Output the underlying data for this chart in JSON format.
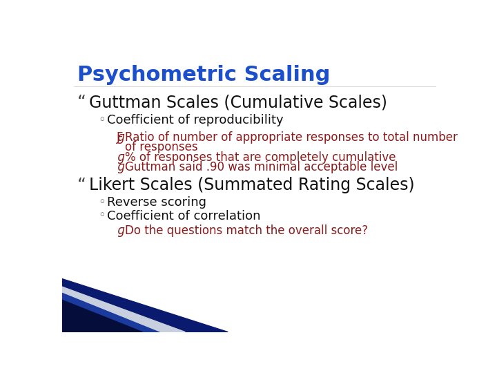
{
  "title": "Psychometric Scaling",
  "title_color": "#1B4FCC",
  "title_fontsize": 22,
  "bg_color": "#FFFFFF",
  "bullet1": "Guttman Scales (Cumulative Scales)",
  "bullet1_fontsize": 17,
  "bullet1_color": "#111111",
  "sub1": "Coefficient of reproducibility",
  "sub1_fontsize": 13,
  "sub1_color": "#111111",
  "red_lines": [
    "Ratio of number of appropriate responses to total number",
    "   of responses",
    "% of responses that are completely cumulative",
    "Guttman said .90 was minimal acceptable level"
  ],
  "red_fontsize": 12,
  "red_color": "#8B1A1A",
  "bullet2": "Likert Scales (Summated Rating Scales)",
  "bullet2_fontsize": 17,
  "bullet2_color": "#111111",
  "sub3": "Reverse scoring",
  "sub4": "Coefficient of correlation",
  "sub34_fontsize": 13,
  "sub34_color": "#111111",
  "sub5": "Do the questions match the overall score?",
  "sub5_fontsize": 12,
  "sub5_color": "#8B1A1A",
  "tri1_color": "#0A1A6E",
  "tri2_color": "#1A3A9E",
  "tri3_color": "#050D3A",
  "tri4_color": "#C8D0E0",
  "quote_color": "#444444",
  "diamond_color": "#555555"
}
